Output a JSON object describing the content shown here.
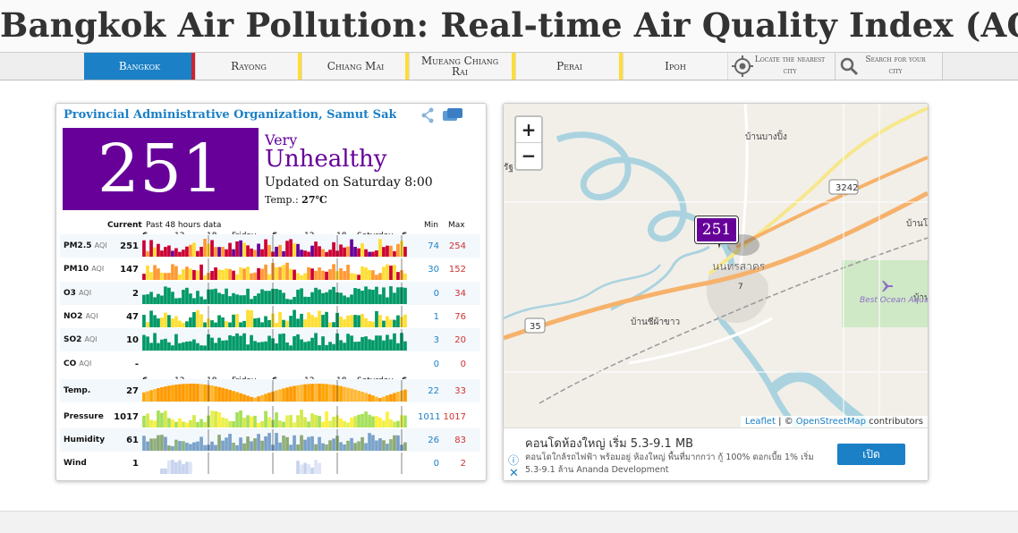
{
  "page": {
    "title_bold": "Bangkok",
    "title_rest": "Air Pollution: Real-time Air Quality Index (AQI)"
  },
  "nav": {
    "tabs": [
      {
        "label": "Bangkok",
        "active": true,
        "bar_color": "#cc2233"
      },
      {
        "label": "Rayong",
        "active": false,
        "bar_color": "#ffdd33"
      },
      {
        "label": "Chiang Mai",
        "active": false,
        "bar_color": "#ffdd33"
      },
      {
        "label": "Mueang Chiang Rai",
        "active": false,
        "bar_color": "#ffdd33"
      },
      {
        "label": "Perai",
        "active": false,
        "bar_color": "#ffdd33"
      },
      {
        "label": "Ipoh",
        "active": false,
        "bar_color": "#f3f3f3"
      }
    ],
    "locate_label": "Locate the nearest city",
    "search_label": "Search for your city",
    "locate_icon": "crosshair-icon",
    "search_icon": "magnifier-icon"
  },
  "station": {
    "name": "Provincial Administrative Organization, Samut Sakhon",
    "aqi": "251",
    "status_small": "Very",
    "status_big": "Unhealthy",
    "updated": "Updated on Saturday 8:00",
    "temp_label": "Temp.:",
    "temp_value": "27℃",
    "aqi_color": "#660099",
    "share_icon": "share-icon",
    "chat_icon": "chat-icon"
  },
  "table": {
    "current_label": "Current",
    "history_label": "Past 48 hours data",
    "min_label": "Min",
    "max_label": "Max",
    "aqi_time_ticks": [
      "6",
      "12",
      "18",
      "Friday",
      "6",
      "12",
      "18",
      "Saturday",
      "6"
    ],
    "weather_time_ticks": [
      "6",
      "12",
      "18",
      "Friday",
      "6",
      "12",
      "18",
      "Saturday",
      "6"
    ],
    "rows": [
      {
        "label": "PM2.5",
        "unit": "AQI",
        "current": "251",
        "min": "74",
        "max": "254",
        "kind": "pm25"
      },
      {
        "label": "PM10",
        "unit": "AQI",
        "current": "147",
        "min": "30",
        "max": "152",
        "kind": "pm10"
      },
      {
        "label": "O3",
        "unit": "AQI",
        "current": "2",
        "min": "0",
        "max": "34",
        "kind": "o3"
      },
      {
        "label": "NO2",
        "unit": "AQI",
        "current": "47",
        "min": "1",
        "max": "76",
        "kind": "no2"
      },
      {
        "label": "SO2",
        "unit": "AQI",
        "current": "10",
        "min": "3",
        "max": "20",
        "kind": "so2"
      },
      {
        "label": "CO",
        "unit": "AQI",
        "current": "-",
        "min": "0",
        "max": "0",
        "kind": "co"
      },
      {
        "label": "Temp.",
        "unit": "",
        "current": "27",
        "min": "22",
        "max": "33",
        "kind": "temp"
      },
      {
        "label": "Pressure",
        "unit": "",
        "current": "1017",
        "min": "1011",
        "max": "1017",
        "kind": "pressure"
      },
      {
        "label": "Humidity",
        "unit": "",
        "current": "61",
        "min": "26",
        "max": "83",
        "kind": "humidity"
      },
      {
        "label": "Wind",
        "unit": "",
        "current": "1",
        "min": "0",
        "max": "2",
        "kind": "wind"
      }
    ]
  },
  "map": {
    "zoom_in": "+",
    "zoom_out": "−",
    "marker_value": "251",
    "city_label": "นนทรสาคร",
    "labels": [
      "บ้านบางปิ้ง",
      "บ้านชีผ้าขาว",
      "Best Ocean Aqua Park",
      "3242",
      "35",
      "7",
      "รัฐ",
      "บ้านโ",
      "บ้าน"
    ],
    "attrib_leaflet": "Leaflet",
    "attrib_sep": " | © ",
    "attrib_osm": "OpenStreetMap",
    "attrib_rest": " contributors"
  },
  "ad": {
    "title": "คอนโดห้องใหญ่ เริ่ม 5.3-9.1 MB",
    "desc": "คอนโดใกล้รถไฟฟ้า พร้อมอยู่ ห้องใหญ่ พื้นที่มากกว่า กู้ 100% ดอกเบี้ย 1% เริ่ม 5.3-9.1 ล้าน Ananda Development",
    "button": "เปิด",
    "info_icon": "info-icon",
    "close_icon": "close-icon"
  }
}
